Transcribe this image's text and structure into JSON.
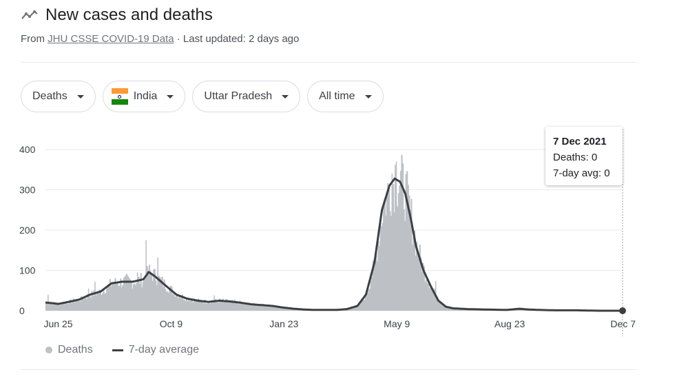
{
  "header": {
    "title": "New cases and deaths",
    "source_prefix": "From ",
    "source_link": "JHU CSSE COVID-19 Data",
    "updated": " · Last updated: 2 days ago"
  },
  "filters": {
    "metric": "Deaths",
    "country": "India",
    "region": "Uttar Pradesh",
    "range": "All time"
  },
  "tooltip": {
    "date": "7 Dec 2021",
    "deaths": "Deaths: 0",
    "avg": "7-day avg: 0"
  },
  "legend": {
    "bars_label": "Deaths",
    "line_label": "7-day average"
  },
  "colors": {
    "bars": "#bdc1c6",
    "line": "#3c4043",
    "grid": "#e8eaed",
    "text": "#3c4043"
  },
  "chart_data": {
    "type": "bar",
    "overlay": "line",
    "ylim": [
      0,
      400
    ],
    "yticks": [
      0,
      100,
      200,
      300,
      400
    ],
    "xticks": [
      "Jun 25",
      "Oct 9",
      "Jan 23",
      "May 9",
      "Aug 23",
      "Dec 7"
    ],
    "grid": true,
    "legend_position": "bottom-left",
    "series": [
      {
        "name": "7-day average",
        "points": [
          [
            "2020-06-15",
            20
          ],
          [
            "2020-06-25",
            17
          ],
          [
            "2020-07-05",
            22
          ],
          [
            "2020-07-15",
            28
          ],
          [
            "2020-07-25",
            40
          ],
          [
            "2020-08-04",
            48
          ],
          [
            "2020-08-14",
            68
          ],
          [
            "2020-08-24",
            72
          ],
          [
            "2020-09-03",
            72
          ],
          [
            "2020-09-13",
            78
          ],
          [
            "2020-09-18",
            96
          ],
          [
            "2020-09-24",
            85
          ],
          [
            "2020-10-04",
            62
          ],
          [
            "2020-10-14",
            40
          ],
          [
            "2020-10-24",
            30
          ],
          [
            "2020-11-03",
            25
          ],
          [
            "2020-11-13",
            22
          ],
          [
            "2020-11-23",
            25
          ],
          [
            "2020-12-03",
            23
          ],
          [
            "2020-12-13",
            20
          ],
          [
            "2020-12-23",
            16
          ],
          [
            "2021-01-02",
            14
          ],
          [
            "2021-01-12",
            12
          ],
          [
            "2021-01-22",
            8
          ],
          [
            "2021-02-01",
            5
          ],
          [
            "2021-02-11",
            3
          ],
          [
            "2021-02-21",
            2
          ],
          [
            "2021-03-03",
            2
          ],
          [
            "2021-03-13",
            2
          ],
          [
            "2021-03-23",
            4
          ],
          [
            "2021-04-02",
            12
          ],
          [
            "2021-04-10",
            40
          ],
          [
            "2021-04-18",
            120
          ],
          [
            "2021-04-25",
            250
          ],
          [
            "2021-05-02",
            310
          ],
          [
            "2021-05-07",
            328
          ],
          [
            "2021-05-12",
            320
          ],
          [
            "2021-05-17",
            290
          ],
          [
            "2021-05-22",
            230
          ],
          [
            "2021-05-27",
            160
          ],
          [
            "2021-06-03",
            100
          ],
          [
            "2021-06-10",
            60
          ],
          [
            "2021-06-17",
            25
          ],
          [
            "2021-06-24",
            10
          ],
          [
            "2021-07-01",
            6
          ],
          [
            "2021-07-15",
            4
          ],
          [
            "2021-08-01",
            3
          ],
          [
            "2021-08-20",
            2
          ],
          [
            "2021-09-01",
            5
          ],
          [
            "2021-09-10",
            3
          ],
          [
            "2021-09-20",
            2
          ],
          [
            "2021-10-05",
            1
          ],
          [
            "2021-10-25",
            1
          ],
          [
            "2021-11-15",
            0
          ],
          [
            "2021-12-07",
            0
          ]
        ]
      },
      {
        "name": "Deaths",
        "spikes": [
          [
            "2020-06-15",
            40
          ],
          [
            "2020-07-23",
            55
          ],
          [
            "2020-07-29",
            72
          ],
          [
            "2020-08-28",
            92
          ],
          [
            "2020-09-07",
            95
          ],
          [
            "2020-09-15",
            175
          ],
          [
            "2020-09-26",
            132
          ],
          [
            "2020-11-18",
            38
          ],
          [
            "2021-05-04",
            340
          ],
          [
            "2021-05-07",
            362
          ],
          [
            "2021-05-08",
            370
          ],
          [
            "2021-06-14",
            74
          ]
        ]
      }
    ],
    "tooltip_point": {
      "x": "2021-12-07",
      "deaths": 0,
      "avg": 0
    }
  }
}
